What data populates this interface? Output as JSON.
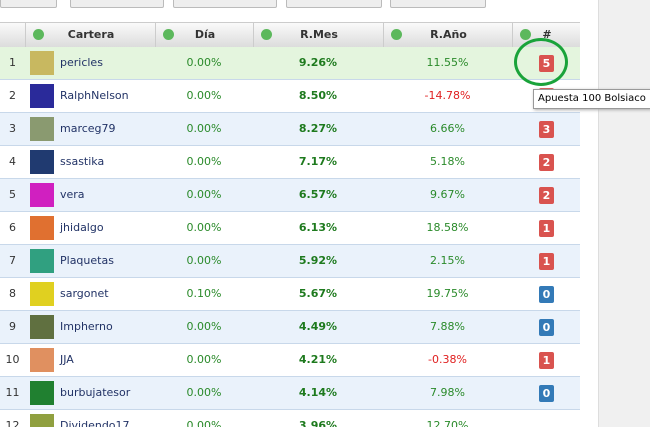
{
  "table": {
    "header": [
      "Cartera",
      "Día",
      "R.Mes",
      "R.Año",
      "#"
    ],
    "rows": [
      {
        "rank": "1",
        "name": "pericles",
        "dia": "0.00%",
        "mes": "9.26%",
        "ano": "11.55%",
        "badge": "5"
      },
      {
        "rank": "2",
        "name": "RalphNelson",
        "dia": "0.00%",
        "mes": "8.50%",
        "ano": "-14.78%"
      },
      {
        "rank": "3",
        "name": "marceg79",
        "dia": "0.00%",
        "mes": "8.27%",
        "ano": "6.66%",
        "badge": "3"
      },
      {
        "rank": "4",
        "name": "ssastika",
        "dia": "0.00%",
        "mes": "7.17%",
        "ano": "5.18%",
        "badge": "2"
      },
      {
        "rank": "5",
        "name": "vera",
        "dia": "0.00%",
        "mes": "6.57%",
        "ano": "9.67%",
        "badge": "2"
      },
      {
        "rank": "6",
        "name": "jhidalgo",
        "dia": "0.00%",
        "mes": "6.13%",
        "ano": "18.58%",
        "badge": "1"
      },
      {
        "rank": "7",
        "name": "Plaquetas",
        "dia": "0.00%",
        "mes": "5.92%",
        "ano": "2.15%",
        "badge": "1"
      },
      {
        "rank": "8",
        "name": "sargonet",
        "dia": "0.10%",
        "mes": "5.67%",
        "ano": "19.75%",
        "badge": "0"
      },
      {
        "rank": "9",
        "name": "Impherno",
        "dia": "0.00%",
        "mes": "4.49%",
        "ano": "7.88%",
        "badge": "0"
      },
      {
        "rank": "10",
        "name": "JJA",
        "dia": "0.00%",
        "mes": "4.21%",
        "ano": "-0.38%",
        "badge": "1"
      },
      {
        "rank": "11",
        "name": "burbujatesor",
        "dia": "0.00%",
        "mes": "4.14%",
        "ano": "7.98%",
        "badge": "0"
      },
      {
        "rank": "12",
        "name": "Dividendo17",
        "dia": "0.00%",
        "mes": "3.96%",
        "ano": "12.70%"
      }
    ]
  },
  "tooltip": "Apuesta 100 Bolsiaco"
}
